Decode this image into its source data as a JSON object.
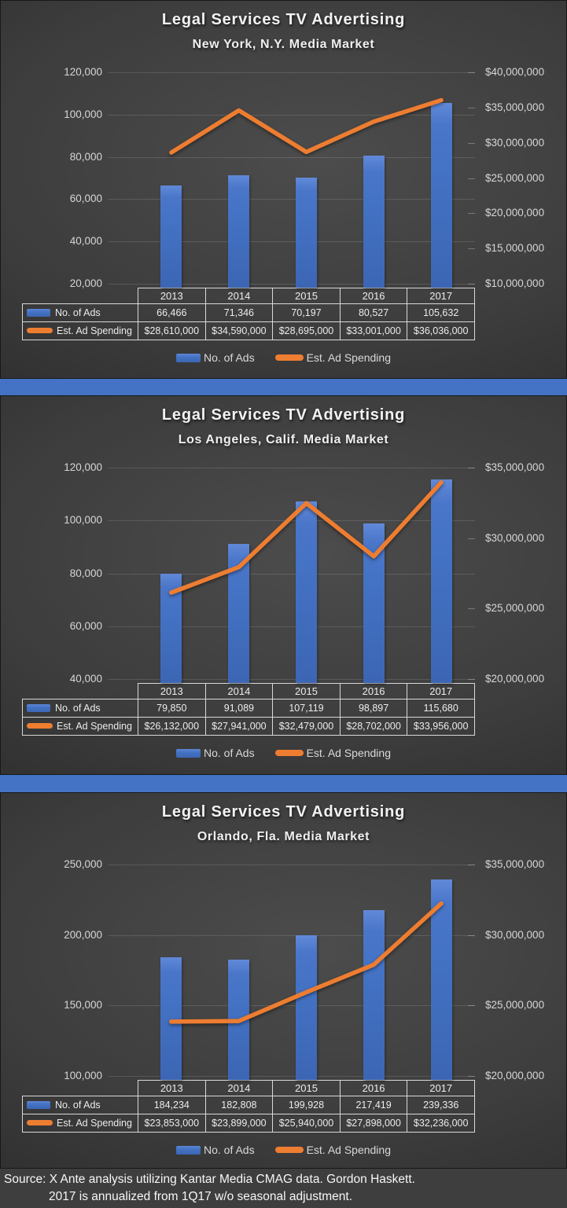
{
  "colors": {
    "bar_blue": "#4472C4",
    "line_orange": "#ED7D31",
    "separator_blue": "#4472C4",
    "background_dark": "#3d3d3d",
    "table_border": "#D9D9D9",
    "axis_text": "#D6D6D6"
  },
  "footer": {
    "line1": "Source: X Ante analysis utilizing Kantar Media CMAG data. Gordon Haskett.",
    "line2": "2017 is annualized from 1Q17 w/o seasonal adjustment."
  },
  "chart_data": [
    {
      "type": "bar+line combo",
      "title": "Legal Services TV Advertising",
      "subtitle": "New York, N.Y. Media Market",
      "categories": [
        "2013",
        "2014",
        "2015",
        "2016",
        "2017"
      ],
      "series": [
        {
          "name": "No. of Ads",
          "type": "bar",
          "axis": "left",
          "values": [
            66466,
            71346,
            70197,
            80527,
            105632
          ],
          "labels": [
            "66,466",
            "71,346",
            "70,197",
            "80,527",
            "105,632"
          ]
        },
        {
          "name": "Est. Ad Spending",
          "type": "line",
          "axis": "right",
          "values": [
            28610000,
            34590000,
            28695000,
            33001000,
            36036000
          ],
          "labels": [
            "$28,610,000",
            "$34,590,000",
            "$28,695,000",
            "$33,001,000",
            "$36,036,000"
          ]
        }
      ],
      "left_axis": {
        "min": 20000,
        "max": 120000,
        "step": 20000,
        "tick_labels": [
          "120,000",
          "100,000",
          "80,000",
          "60,000",
          "40,000",
          "20,000"
        ]
      },
      "right_axis": {
        "min": 10000000,
        "max": 40000000,
        "step": 5000000,
        "tick_labels": [
          "$40,000,000",
          "$35,000,000",
          "$30,000,000",
          "$25,000,000",
          "$20,000,000",
          "$15,000,000",
          "$10,000,000"
        ]
      },
      "grid": true,
      "legend_position": "bottom",
      "data_table_shown": true
    },
    {
      "type": "bar+line combo",
      "title": "Legal Services TV Advertising",
      "subtitle": "Los Angeles, Calif. Media Market",
      "categories": [
        "2013",
        "2014",
        "2015",
        "2016",
        "2017"
      ],
      "series": [
        {
          "name": "No. of Ads",
          "type": "bar",
          "axis": "left",
          "values": [
            79850,
            91089,
            107119,
            98897,
            115680
          ],
          "labels": [
            "79,850",
            "91,089",
            "107,119",
            "98,897",
            "115,680"
          ]
        },
        {
          "name": "Est. Ad Spending",
          "type": "line",
          "axis": "right",
          "values": [
            26132000,
            27941000,
            32479000,
            28702000,
            33956000
          ],
          "labels": [
            "$26,132,000",
            "$27,941,000",
            "$32,479,000",
            "$28,702,000",
            "$33,956,000"
          ]
        }
      ],
      "left_axis": {
        "min": 40000,
        "max": 120000,
        "step": 20000,
        "tick_labels": [
          "120,000",
          "100,000",
          "80,000",
          "60,000",
          "40,000"
        ]
      },
      "right_axis": {
        "min": 20000000,
        "max": 35000000,
        "step": 5000000,
        "tick_labels": [
          "$35,000,000",
          "$30,000,000",
          "$25,000,000",
          "$20,000,000"
        ]
      },
      "grid": true,
      "legend_position": "bottom",
      "data_table_shown": true
    },
    {
      "type": "bar+line combo",
      "title": "Legal Services TV Advertising",
      "subtitle": "Orlando, Fla. Media Market",
      "categories": [
        "2013",
        "2014",
        "2015",
        "2016",
        "2017"
      ],
      "series": [
        {
          "name": "No. of Ads",
          "type": "bar",
          "axis": "left",
          "values": [
            184234,
            182808,
            199928,
            217419,
            239336
          ],
          "labels": [
            "184,234",
            "182,808",
            "199,928",
            "217,419",
            "239,336"
          ]
        },
        {
          "name": "Est. Ad Spending",
          "type": "line",
          "axis": "right",
          "values": [
            23853000,
            23899000,
            25940000,
            27898000,
            32236000
          ],
          "labels": [
            "$23,853,000",
            "$23,899,000",
            "$25,940,000",
            "$27,898,000",
            "$32,236,000"
          ]
        }
      ],
      "left_axis": {
        "min": 100000,
        "max": 250000,
        "step": 50000,
        "tick_labels": [
          "250,000",
          "200,000",
          "150,000",
          "100,000"
        ]
      },
      "right_axis": {
        "min": 20000000,
        "max": 35000000,
        "step": 5000000,
        "tick_labels": [
          "$35,000,000",
          "$30,000,000",
          "$25,000,000",
          "$20,000,000"
        ]
      },
      "grid": true,
      "legend_position": "bottom",
      "data_table_shown": true
    }
  ]
}
